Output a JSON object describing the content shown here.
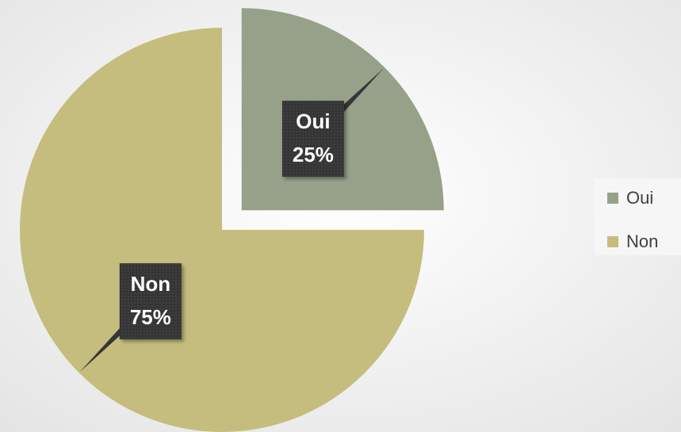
{
  "chart_data": {
    "type": "pie",
    "categories": [
      "Oui",
      "Non"
    ],
    "values": [
      25,
      75
    ],
    "value_labels": [
      "25%",
      "75%"
    ],
    "colors": [
      "#97a18a",
      "#c4bd7e"
    ],
    "exploded": [
      true,
      false
    ],
    "legend": "right"
  }
}
